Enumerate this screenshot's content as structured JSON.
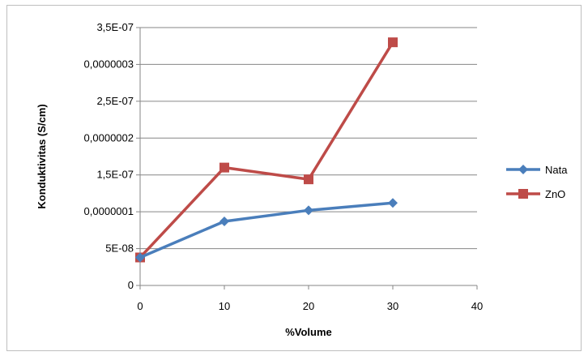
{
  "chart_data": {
    "type": "line",
    "title": "",
    "xlabel": "%Volume",
    "ylabel": "Konduktivitas  (S/cm)",
    "xlim": [
      0,
      40
    ],
    "ylim": [
      0,
      3.5e-07
    ],
    "x_ticks": [
      0,
      10,
      20,
      30,
      40
    ],
    "x_tick_labels": [
      "0",
      "10",
      "20",
      "30",
      "40"
    ],
    "y_ticks": [
      0,
      5e-08,
      1e-07,
      1.5e-07,
      2e-07,
      2.5e-07,
      3e-07,
      3.5e-07
    ],
    "y_tick_labels": [
      "0",
      "5E-08",
      "0,0000001",
      "1,5E-07",
      "0,0000002",
      "2,5E-07",
      "0,0000003",
      "3,5E-07"
    ],
    "grid": "horizontal",
    "legend_position": "right",
    "series": [
      {
        "name": "Nata",
        "color": "#4a7ebb",
        "marker": "diamond",
        "x": [
          0,
          10,
          20,
          30
        ],
        "y": [
          3.8e-08,
          8.7e-08,
          1.02e-07,
          1.12e-07
        ]
      },
      {
        "name": "ZnO",
        "color": "#be4b48",
        "marker": "square",
        "x": [
          0,
          10,
          20,
          30
        ],
        "y": [
          3.8e-08,
          1.6e-07,
          1.44e-07,
          3.3e-07
        ]
      }
    ]
  }
}
